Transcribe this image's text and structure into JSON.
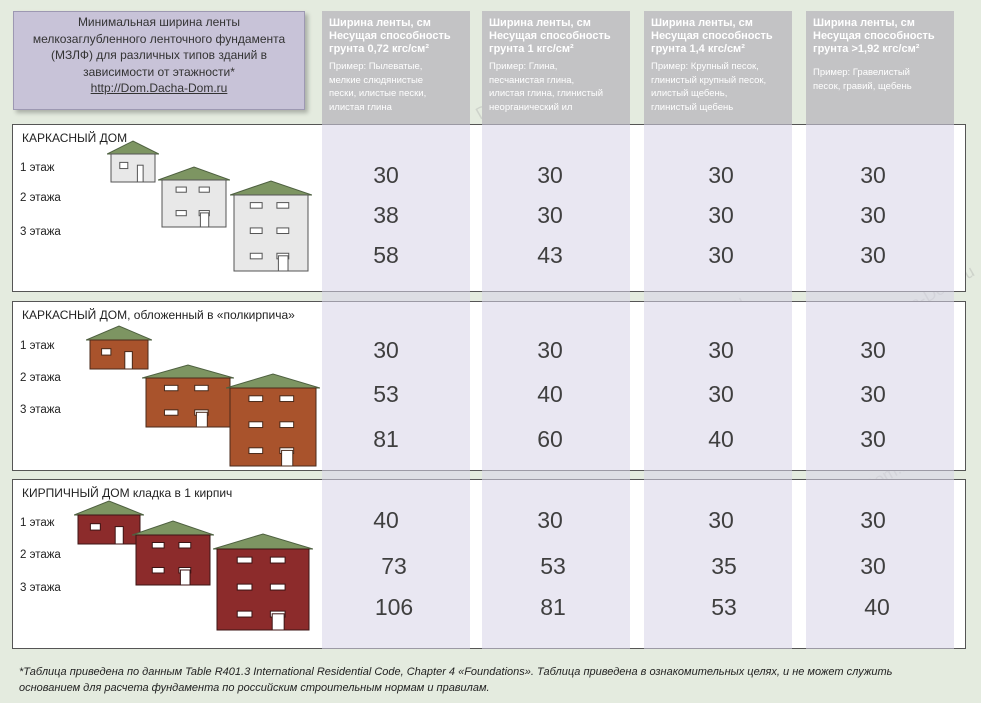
{
  "title": {
    "lines": [
      "Минимальная ширина ленты",
      "мелкозаглубленного  ленточного фундамента",
      "(МЗЛФ)  для различных типов зданий в",
      "зависимости от этажности*"
    ],
    "link": "http://Dom.Dacha-Dom.ru"
  },
  "columns": [
    {
      "head": [
        "Ширина ленты, см",
        "Несущая способность",
        "грунта 0,72 кгс/см²"
      ],
      "example": [
        "Пример: Пылеватые,",
        "мелкие слюдянистые",
        "пески, илистые пески,",
        "илистая глина"
      ]
    },
    {
      "head": [
        "Ширина ленты, см",
        "Несущая способность",
        "грунта 1  кгс/см²"
      ],
      "example": [
        "Пример: Глина,",
        "песчанистая глина,",
        "илистая глина, глинистый",
        "неорганический ил"
      ]
    },
    {
      "head": [
        "Ширина ленты, см",
        "Несущая способность",
        "грунта 1,4 кгс/см²"
      ],
      "example": [
        "Пример: Крупный песок,",
        "глинистый крупный песок,",
        "илистый щебень,",
        "глинистый щебень"
      ]
    },
    {
      "head": [
        "Ширина ленты, см",
        "Несущая способность",
        "грунта  >1,92 кгс/см²"
      ],
      "example": [
        "Пример: Гравелистый",
        "песок, гравий, щебень"
      ]
    }
  ],
  "sections": [
    {
      "title": "КАРКАСНЫЙ ДОМ",
      "floors": [
        "1 этаж",
        "2 этажа",
        "3 этажа"
      ],
      "values": [
        [
          "30",
          "30",
          "30",
          "30"
        ],
        [
          "38",
          "30",
          "30",
          "30"
        ],
        [
          "58",
          "43",
          "30",
          "30"
        ]
      ],
      "house_color": "#e8e8e8",
      "house_stroke": "#555555"
    },
    {
      "title": "КАРКАСНЫЙ ДОМ, обложенный в «полкирпича»",
      "floors": [
        "1 этаж",
        "2 этажа",
        "3 этажа"
      ],
      "values": [
        [
          "30",
          "30",
          "30",
          "30"
        ],
        [
          "53",
          "40",
          "30",
          "30"
        ],
        [
          "81",
          "60",
          "40",
          "30"
        ]
      ],
      "house_color": "#a9532c",
      "house_stroke": "#4a2a1a"
    },
    {
      "title": "КИРПИЧНЫЙ ДОМ кладка в 1 кирпич",
      "floors": [
        "1 этаж",
        "2 этажа",
        "3 этажа"
      ],
      "values": [
        [
          "40",
          "30",
          "30",
          "30"
        ],
        [
          "73",
          "53",
          "35",
          "30"
        ],
        [
          "106",
          "81",
          "53",
          "40"
        ]
      ],
      "house_color": "#8c2b2b",
      "house_stroke": "#3c1414"
    }
  ],
  "watermark": "Dacha-Dom.ru",
  "footnote": [
    "*Таблица приведена по данным Table R401.3 International Residential Code, Chapter 4 «Foundations». Таблица приведена в ознакомительных целях, и  не может  служить",
    "основанием для расчета фундамента по российским строительным нормам и правилам."
  ],
  "colors": {
    "roof": "#7d9562",
    "band": "#d7d3e8",
    "header": "#c3c3c5",
    "background": "#e4ebdf"
  }
}
